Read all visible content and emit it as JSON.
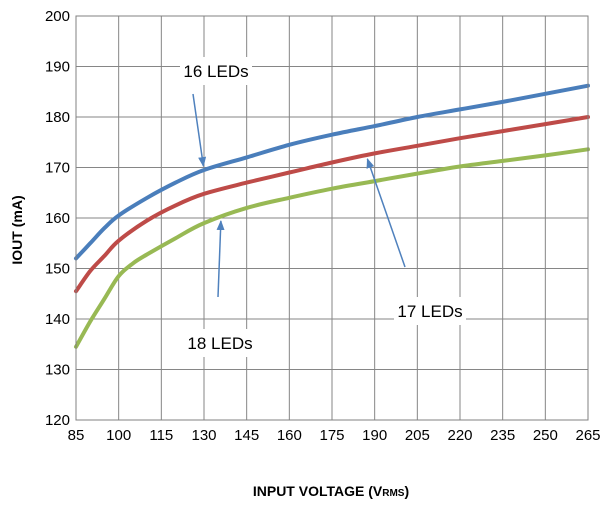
{
  "chart_data": {
    "type": "line",
    "xlabel": "INPUT VOLTAGE (V",
    "xlabel_sub": "RMS",
    "xlabel_close": ")",
    "ylabel": "IOUT (mA)",
    "xlim": [
      85,
      265
    ],
    "ylim": [
      120,
      200
    ],
    "xticks": [
      85,
      100,
      115,
      130,
      145,
      160,
      175,
      190,
      205,
      220,
      235,
      250,
      265
    ],
    "yticks": [
      120,
      130,
      140,
      150,
      160,
      170,
      180,
      190,
      200
    ],
    "grid": true,
    "series": [
      {
        "name": "16 LEDs",
        "color": "#4a7ebb",
        "x": [
          85,
          90,
          95,
          100,
          110,
          120,
          130,
          145,
          160,
          175,
          190,
          205,
          220,
          235,
          250,
          265
        ],
        "y": [
          152,
          155,
          158,
          160.5,
          164,
          167,
          169.5,
          172,
          174.5,
          176.5,
          178.2,
          180,
          181.5,
          183,
          184.6,
          186.2
        ]
      },
      {
        "name": "17 LEDs",
        "color": "#be4b48",
        "x": [
          85,
          90,
          95,
          100,
          110,
          120,
          130,
          145,
          160,
          175,
          190,
          205,
          220,
          235,
          250,
          265
        ],
        "y": [
          145.5,
          149.5,
          152.5,
          155.5,
          159.5,
          162.5,
          164.8,
          167,
          169,
          171,
          172.8,
          174.3,
          175.8,
          177.2,
          178.6,
          180
        ]
      },
      {
        "name": "18 LEDs",
        "color": "#98b954",
        "x": [
          85,
          90,
          95,
          100,
          105,
          110,
          120,
          130,
          145,
          160,
          175,
          190,
          205,
          220,
          235,
          250,
          265
        ],
        "y": [
          134.5,
          139.5,
          144,
          148.5,
          151,
          152.8,
          156,
          159,
          162,
          164,
          165.8,
          167.3,
          168.8,
          170.2,
          171.3,
          172.4,
          173.6
        ]
      }
    ],
    "annotations": [
      {
        "text": "16 LEDs",
        "series": "16 LEDs",
        "arrow_to_x": 130
      },
      {
        "text": "17 LEDs",
        "series": "17 LEDs",
        "arrow_to_x": 187
      },
      {
        "text": "18 LEDs",
        "series": "18 LEDs",
        "arrow_to_x": 136
      }
    ]
  }
}
